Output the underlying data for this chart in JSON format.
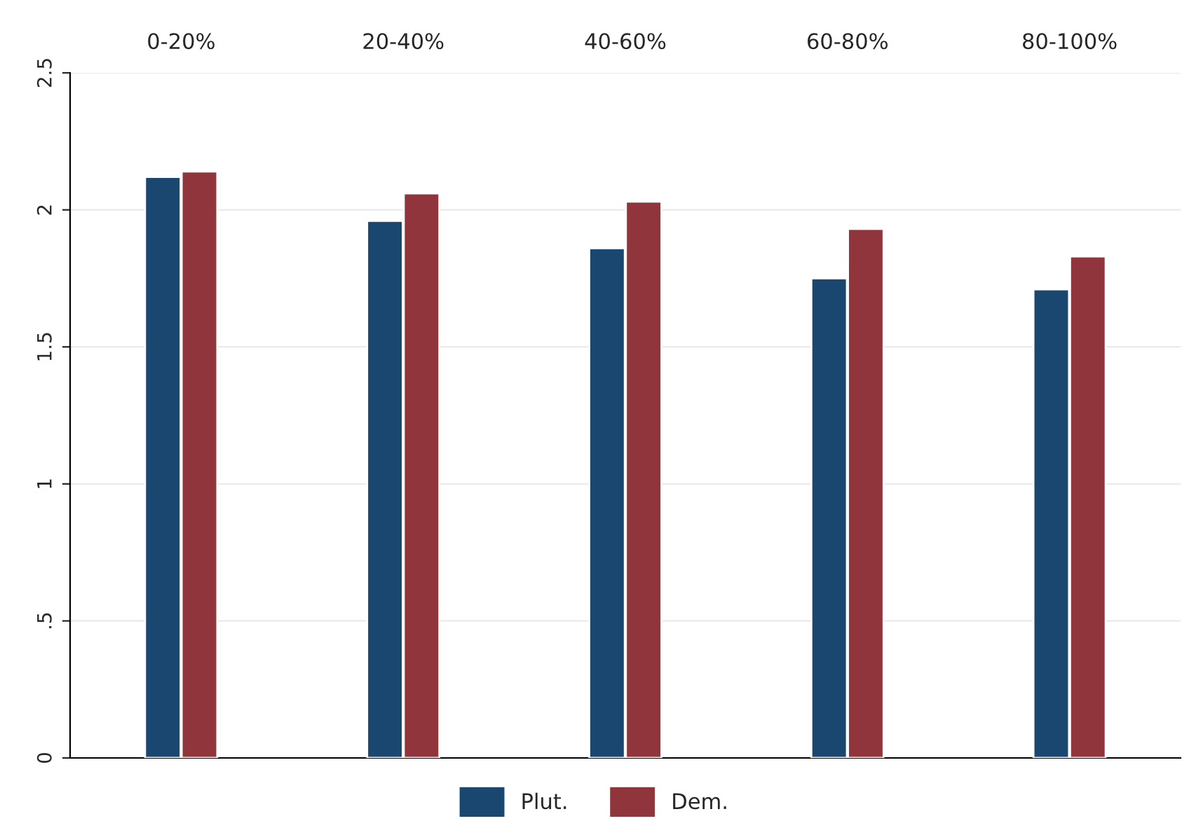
{
  "chart_data": {
    "type": "bar",
    "categories": [
      "0-20%",
      "20-40%",
      "40-60%",
      "60-80%",
      "80-100%"
    ],
    "ylim": [
      0,
      2.5
    ],
    "yticks": [
      0,
      {
        "value": 0.5,
        "label": ".5"
      },
      1,
      1.5,
      2,
      2.5
    ],
    "grid": "y",
    "legend": "bottom",
    "series": [
      {
        "name": "Plut.",
        "color": "#1a476f",
        "values": [
          2.12,
          1.96,
          1.86,
          1.75,
          1.71
        ]
      },
      {
        "name": "Dem.",
        "color": "#90353b",
        "values": [
          2.14,
          2.06,
          2.03,
          1.93,
          1.83
        ]
      }
    ]
  }
}
